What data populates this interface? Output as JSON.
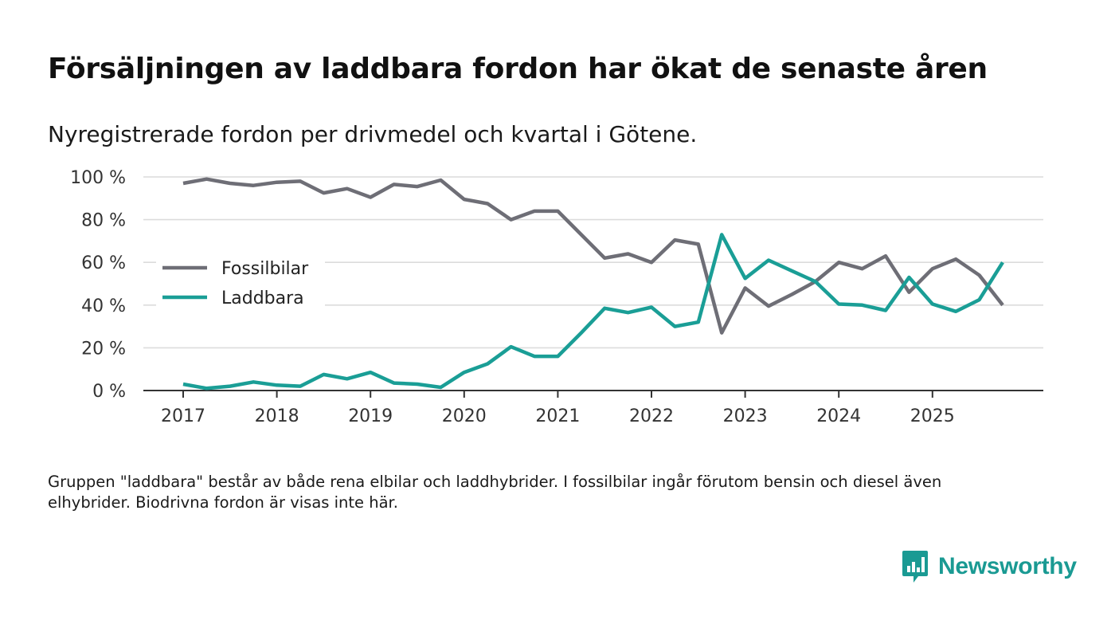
{
  "title": "Försäljningen av laddbara fordon har ökat de senaste åren",
  "subtitle": "Nyregistrerade fordon per drivmedel och kvartal i Götene.",
  "footnote": "Gruppen \"laddbara\" består av både rena elbilar och laddhybrider. I fossilbilar ingår förutom bensin och diesel även elhybrider. Biodrivna fordon är visas inte här.",
  "brand": {
    "name": "Newsworthy",
    "color": "#1a9a93",
    "icon": "bar-chart-icon"
  },
  "chart_data": {
    "type": "line",
    "title": "Försäljningen av laddbara fordon har ökat de senaste åren",
    "xlabel": "",
    "ylabel": "",
    "ylim": [
      0,
      100
    ],
    "yticks": [
      0,
      20,
      40,
      60,
      80,
      100
    ],
    "ytick_labels": [
      "0 %",
      "20 %",
      "40 %",
      "60 %",
      "80 %",
      "100 %"
    ],
    "xticks": [
      2017,
      2018,
      2019,
      2020,
      2021,
      2022,
      2023,
      2024,
      2025
    ],
    "xtick_labels": [
      "2017",
      "2018",
      "2019",
      "2020",
      "2021",
      "2022",
      "2023",
      "2024",
      "2025"
    ],
    "x": [
      2017.0,
      2017.25,
      2017.5,
      2017.75,
      2018.0,
      2018.25,
      2018.5,
      2018.75,
      2019.0,
      2019.25,
      2019.5,
      2019.75,
      2020.0,
      2020.25,
      2020.5,
      2020.75,
      2021.0,
      2021.25,
      2021.5,
      2021.75,
      2022.0,
      2022.25,
      2022.5,
      2022.75,
      2023.0,
      2023.25,
      2023.5,
      2023.75,
      2024.0,
      2024.25,
      2024.5,
      2024.75,
      2025.0,
      2025.25,
      2025.5,
      2025.75
    ],
    "legend_position": "left",
    "series": [
      {
        "name": "Fossilbilar",
        "color": "#6e6e76",
        "values": [
          97,
          99,
          97,
          96,
          97.5,
          98,
          92.5,
          94.5,
          90.5,
          96.5,
          95.5,
          98.5,
          89.5,
          87.5,
          80,
          84,
          84,
          73,
          62,
          64,
          60,
          70.5,
          68.5,
          27,
          48,
          39.5,
          45,
          51,
          60,
          57,
          63,
          46,
          57,
          61.5,
          54,
          40
        ]
      },
      {
        "name": "Laddbara",
        "color": "#1a9e96",
        "values": [
          3,
          1,
          2,
          4,
          2.5,
          2,
          7.5,
          5.5,
          8.5,
          3.5,
          3,
          1.5,
          8.5,
          12.5,
          20.5,
          16,
          16,
          27,
          38.5,
          36.5,
          39,
          30,
          32,
          73,
          52.5,
          61,
          56,
          51,
          40.5,
          40,
          37.5,
          53,
          40.5,
          37,
          42.5,
          60
        ]
      }
    ]
  }
}
